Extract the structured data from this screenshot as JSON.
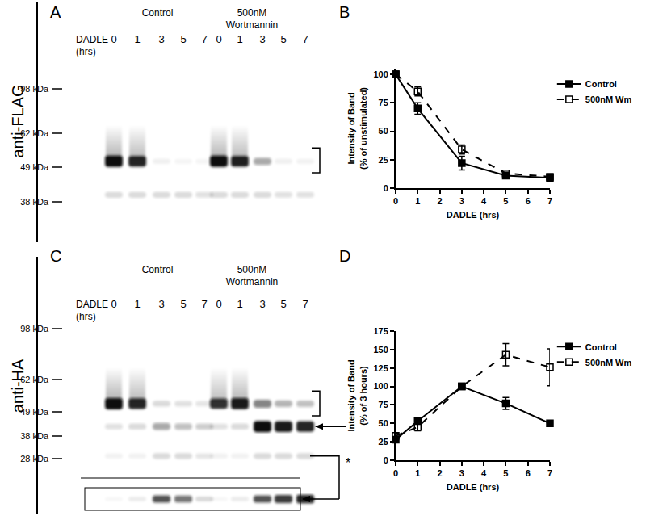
{
  "blots": [
    {
      "panel": "A",
      "antibody": "anti-FLAG",
      "groups": [
        {
          "label": [
            "Control"
          ],
          "lanes": [
            0,
            1,
            3,
            5,
            7
          ]
        },
        {
          "label": [
            "500nM",
            "Wortmannin"
          ],
          "lanes": [
            0,
            1,
            3,
            5,
            7
          ]
        }
      ],
      "lane_title": [
        "DADLE",
        "(hrs)"
      ],
      "markers": [
        {
          "value": 98,
          "label": "98 kDa"
        },
        {
          "value": 62,
          "label": "62 kDa"
        },
        {
          "value": 49,
          "label": "49 kDa"
        },
        {
          "value": 38,
          "label": "38 kDa"
        }
      ],
      "bands": [
        {
          "kda": 51,
          "intensity": [
            1,
            0.9,
            0.06,
            0.04,
            0.04,
            1,
            0.92,
            0.35,
            0.06,
            0.05
          ]
        },
        {
          "kda": 40,
          "intensity": [
            0.15,
            0.15,
            0.15,
            0.15,
            0.12,
            0.15,
            0.15,
            0.15,
            0.12,
            0.12
          ]
        }
      ],
      "bracket_kda": [
        56,
        47
      ]
    },
    {
      "panel": "C",
      "antibody": "anti-HA",
      "groups": [
        {
          "label": [
            "Control"
          ],
          "lanes": [
            0,
            1,
            3,
            5,
            7
          ]
        },
        {
          "label": [
            "500nM",
            "Wortmannin"
          ],
          "lanes": [
            0,
            1,
            3,
            5,
            7
          ]
        }
      ],
      "lane_title": [
        "DADLE",
        "(hrs)"
      ],
      "markers": [
        {
          "value": 98,
          "label": "98 kDa"
        },
        {
          "value": 62,
          "label": "62 kDa"
        },
        {
          "value": 49,
          "label": "49 kDa"
        },
        {
          "value": 38,
          "label": "38 kDa"
        },
        {
          "value": 28,
          "label": "28 kDa"
        }
      ],
      "bands": [
        {
          "kda": 52,
          "intensity": [
            1,
            0.9,
            0.15,
            0.12,
            0.1,
            0.85,
            0.95,
            0.5,
            0.3,
            0.25
          ]
        },
        {
          "kda": 42,
          "intensity": [
            0.12,
            0.15,
            0.35,
            0.25,
            0.2,
            0.12,
            0.15,
            1,
            0.95,
            0.9
          ]
        },
        {
          "kda": 29,
          "intensity": [
            0.05,
            0.05,
            0.15,
            0.15,
            0.1,
            0.05,
            0.05,
            0.15,
            0.15,
            0.15
          ]
        }
      ],
      "bracket_kda": [
        57,
        47
      ],
      "arrow_kda": 42,
      "asterisk": {
        "kda": 29,
        "label": "*"
      },
      "inset": {
        "intensity": [
          0.03,
          0.08,
          0.7,
          0.55,
          0.15,
          0.03,
          0.08,
          0.7,
          0.8,
          0.9
        ]
      }
    }
  ],
  "chart_panels": [
    "B",
    "D"
  ],
  "chart_data": [
    {
      "type": "line",
      "xlabel": "DADLE (hrs)",
      "ylabel": "Intensity of Band\n(% of unstimulated)",
      "x": [
        0,
        1,
        3,
        5,
        7
      ],
      "series": [
        {
          "name": "Control",
          "color": "#000000",
          "marker": "square",
          "line_style": "solid",
          "values": [
            100,
            70,
            22,
            11,
            9
          ],
          "errors": [
            0,
            5,
            6,
            1,
            1
          ]
        },
        {
          "name": "500nM Wm",
          "color": "#000000",
          "marker": "square-open",
          "line_style": "dash",
          "values": [
            100,
            85,
            34,
            13,
            10
          ],
          "errors": [
            0,
            4,
            4,
            1,
            1
          ]
        }
      ],
      "xlim": [
        0,
        7
      ],
      "xticks": [
        0,
        1,
        2,
        3,
        4,
        5,
        6,
        7
      ],
      "ylim": [
        0,
        105
      ],
      "yticks": [
        0,
        25,
        50,
        75,
        100
      ],
      "grid": false,
      "legend": "right"
    },
    {
      "type": "line",
      "xlabel": "DADLE (hrs)",
      "ylabel": "Intensity of Band\n(% of 3 hours)",
      "x": [
        0,
        1,
        3,
        5,
        7
      ],
      "series": [
        {
          "name": "Control",
          "color": "#000000",
          "marker": "square",
          "line_style": "solid",
          "values": [
            28,
            53,
            100,
            77,
            50
          ],
          "errors": [
            3,
            4,
            0,
            8,
            3
          ]
        },
        {
          "name": "500nM Wm",
          "color": "#000000",
          "marker": "square-open",
          "line_style": "dash",
          "values": [
            33,
            45,
            100,
            143,
            126
          ],
          "errors": [
            4,
            5,
            2,
            15,
            25
          ]
        }
      ],
      "xlim": [
        0,
        7
      ],
      "xticks": [
        0,
        1,
        2,
        3,
        4,
        5,
        6,
        7
      ],
      "ylim": [
        0,
        175
      ],
      "yticks": [
        0,
        25,
        50,
        75,
        100,
        125,
        150,
        175
      ],
      "grid": false,
      "legend": "right"
    }
  ]
}
